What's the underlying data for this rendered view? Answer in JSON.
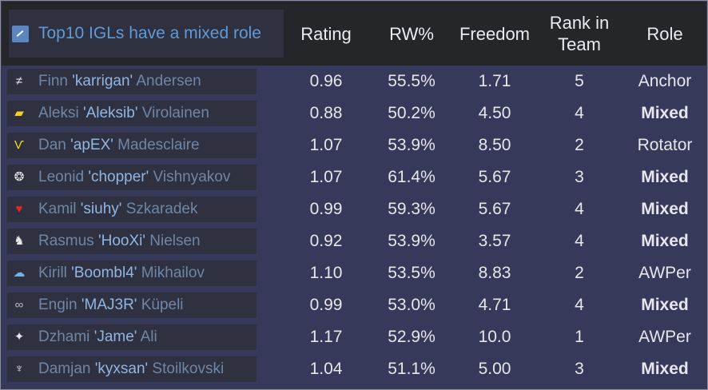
{
  "header": {
    "title": "Top10 IGLs have a mixed role",
    "columns": {
      "rating": "Rating",
      "rw": "RW%",
      "freedom": "Freedom",
      "rank": "Rank in Team",
      "role": "Role"
    }
  },
  "rows": [
    {
      "first": "Finn ",
      "nick": "'karrigan'",
      "last": " Andersen",
      "rating": "0.96",
      "rw": "55.5%",
      "freedom": "1.71",
      "rank": "5",
      "role": "Anchor",
      "role_bold": false,
      "logo_icon": "faze-logo-icon",
      "logo_glyph": "≠",
      "logo_color": "#e6e6ee"
    },
    {
      "first": "Aleksi ",
      "nick": "'Aleksib'",
      "last": " Virolainen",
      "rating": "0.88",
      "rw": "50.2%",
      "freedom": "4.50",
      "rank": "4",
      "role": "Mixed",
      "role_bold": true,
      "logo_icon": "navi-logo-icon",
      "logo_glyph": "▰",
      "logo_color": "#f2d21a"
    },
    {
      "first": "Dan ",
      "nick": "'apEX'",
      "last": " Madesclaire",
      "rating": "1.07",
      "rw": "53.9%",
      "freedom": "8.50",
      "rank": "2",
      "role": "Rotator",
      "role_bold": false,
      "logo_icon": "vitality-logo-icon",
      "logo_glyph": "Ѵ",
      "logo_color": "#f2e21c"
    },
    {
      "first": "Leonid ",
      "nick": "'chopper'",
      "last": " Vishnyakov",
      "rating": "1.07",
      "rw": "61.4%",
      "freedom": "5.67",
      "rank": "3",
      "role": "Mixed",
      "role_bold": true,
      "logo_icon": "spirit-logo-icon",
      "logo_glyph": "❂",
      "logo_color": "#e8e8ee"
    },
    {
      "first": "Kamil ",
      "nick": "'siuhy'",
      "last": " Szkaradek",
      "rating": "0.99",
      "rw": "59.3%",
      "freedom": "5.67",
      "rank": "4",
      "role": "Mixed",
      "role_bold": true,
      "logo_icon": "mouz-logo-icon",
      "logo_glyph": "♥",
      "logo_color": "#e3262d"
    },
    {
      "first": "Rasmus ",
      "nick": "'HooXi'",
      "last": " Nielsen",
      "rating": "0.92",
      "rw": "53.9%",
      "freedom": "3.57",
      "rank": "4",
      "role": "Mixed",
      "role_bold": true,
      "logo_icon": "g2-logo-icon",
      "logo_glyph": "♞",
      "logo_color": "#e8e8ee"
    },
    {
      "first": "Kirill ",
      "nick": "'Boombl4'",
      "last": " Mikhailov",
      "rating": "1.10",
      "rw": "53.5%",
      "freedom": "8.83",
      "rank": "2",
      "role": "AWPer",
      "role_bold": false,
      "logo_icon": "cloud-logo-icon",
      "logo_glyph": "☁",
      "logo_color": "#6fb2e6"
    },
    {
      "first": "Engin ",
      "nick": "'MAJ3R'",
      "last": " Küpeli",
      "rating": "0.99",
      "rw": "53.0%",
      "freedom": "4.71",
      "rank": "4",
      "role": "Mixed",
      "role_bold": true,
      "logo_icon": "eternal-fire-logo-icon",
      "logo_glyph": "∞",
      "logo_color": "#b9b9c4"
    },
    {
      "first": "Dzhami ",
      "nick": "'Jame'",
      "last": " Ali",
      "rating": "1.17",
      "rw": "52.9%",
      "freedom": "10.0",
      "rank": "1",
      "role": "AWPer",
      "role_bold": false,
      "logo_icon": "virtus-pro-logo-icon",
      "logo_glyph": "✦",
      "logo_color": "#e8e8ee"
    },
    {
      "first": "Damjan ",
      "nick": "'kyxsan'",
      "last": " Stoilkovski",
      "rating": "1.04",
      "rw": "51.1%",
      "freedom": "5.00",
      "rank": "3",
      "role": "Mixed",
      "role_bold": true,
      "logo_icon": "fnatic-logo-icon",
      "logo_glyph": "♆",
      "logo_color": "#e8e8ee"
    }
  ]
}
